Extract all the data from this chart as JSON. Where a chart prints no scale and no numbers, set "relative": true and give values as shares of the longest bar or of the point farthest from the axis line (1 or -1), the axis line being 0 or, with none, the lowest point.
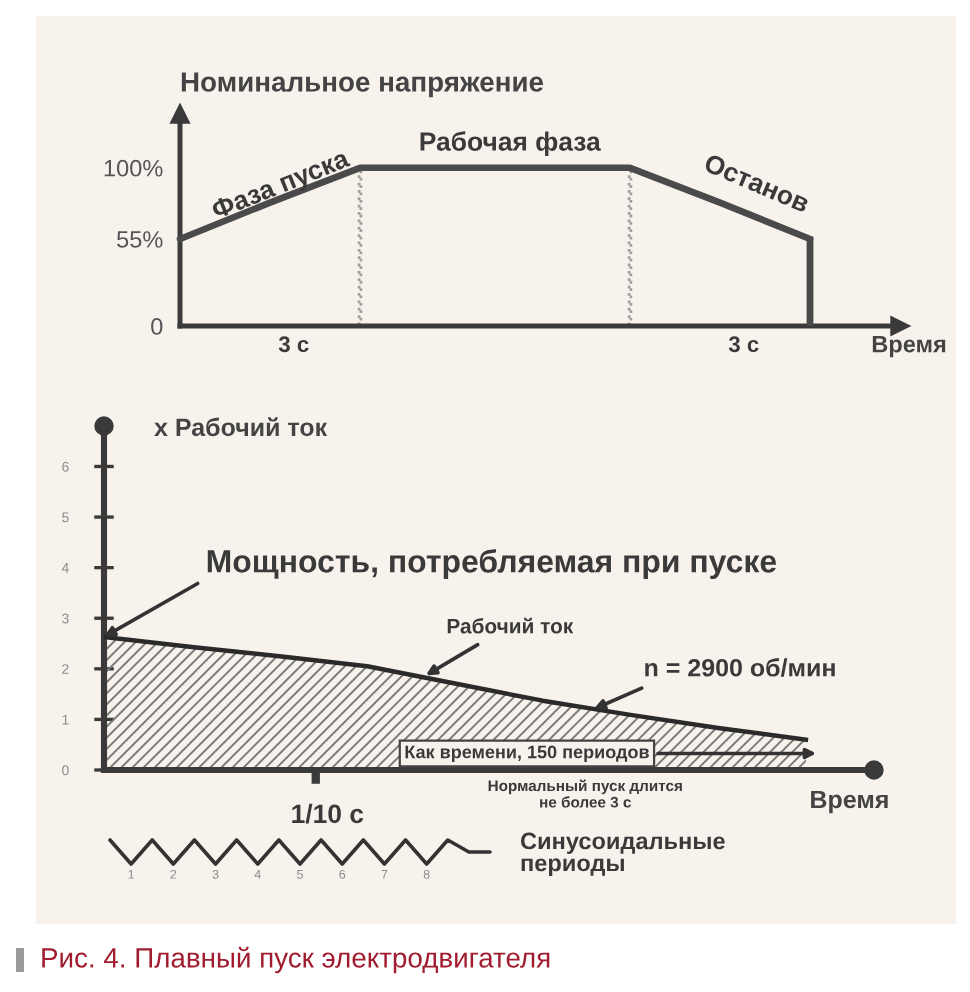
{
  "chart_data": [
    {
      "type": "line",
      "ylabel": "Номинальное напряжение",
      "xlabel": "Время",
      "categories": [
        null,
        null,
        null,
        null,
        null,
        null,
        null,
        null
      ],
      "series": [
        {
          "color": "#4a4a4a",
          "values": [
            55,
            78,
            100,
            100,
            100,
            100,
            78,
            55
          ]
        },
        {
          "type": "bar",
          "color": "#a0a0a0",
          "line_style": "dotted",
          "values": [
            null,
            null,
            100,
            null,
            null,
            100,
            null,
            null
          ]
        },
        {
          "type": "bar",
          "color": "#4a4a4a",
          "values": [
            null,
            null,
            null,
            null,
            null,
            null,
            null,
            55
          ]
        }
      ],
      "ylim": [
        0,
        134
      ],
      "yticks": [
        0,
        {
          "value": 55,
          "label": "55%"
        },
        {
          "value": 100,
          "label": "100%"
        }
      ],
      "annotations": [
        "Фаза пуска",
        "Рабочая фаза",
        "Останов",
        "3 с",
        "3 с"
      ]
    },
    {
      "type": "area",
      "ylabel": "x Рабочий ток",
      "xlabel": "Время",
      "categories": [
        null,
        null,
        null,
        null,
        null,
        null,
        null,
        null,
        null
      ],
      "values": [
        2.63,
        2.43,
        2.25,
        2.05,
        1.71,
        1.37,
        1.09,
        0.83,
        0.6
      ],
      "color": "#2a2a2a",
      "ylim": [
        0,
        6.8
      ],
      "yticks": [
        0,
        1,
        2,
        3,
        4,
        5,
        6
      ],
      "annotations": [
        "Мощность, потребляемая при пуске",
        "Рабочий ток",
        "n = 2900 об/мин",
        "Как времени, 150 периодов",
        "Нормальный пуск длится\nне более 3 с",
        "1/10 с"
      ]
    },
    {
      "type": "line",
      "relative": true,
      "categories": [
        null,
        "1",
        null,
        "2",
        null,
        "3",
        null,
        "4",
        null,
        "5",
        null,
        "6",
        null,
        "7",
        null,
        "8",
        null,
        null,
        null
      ],
      "values": [
        1,
        0,
        1,
        0,
        1,
        0,
        1,
        0,
        1,
        0,
        1,
        0,
        1,
        0,
        1,
        0,
        1,
        0.5,
        0.5
      ],
      "color": "#333333",
      "tick_labels": "x",
      "annotations": [
        "Синусоидальные\nпериоды",
        "Рис. 4. Плавный пуск электродвигателя"
      ]
    }
  ]
}
